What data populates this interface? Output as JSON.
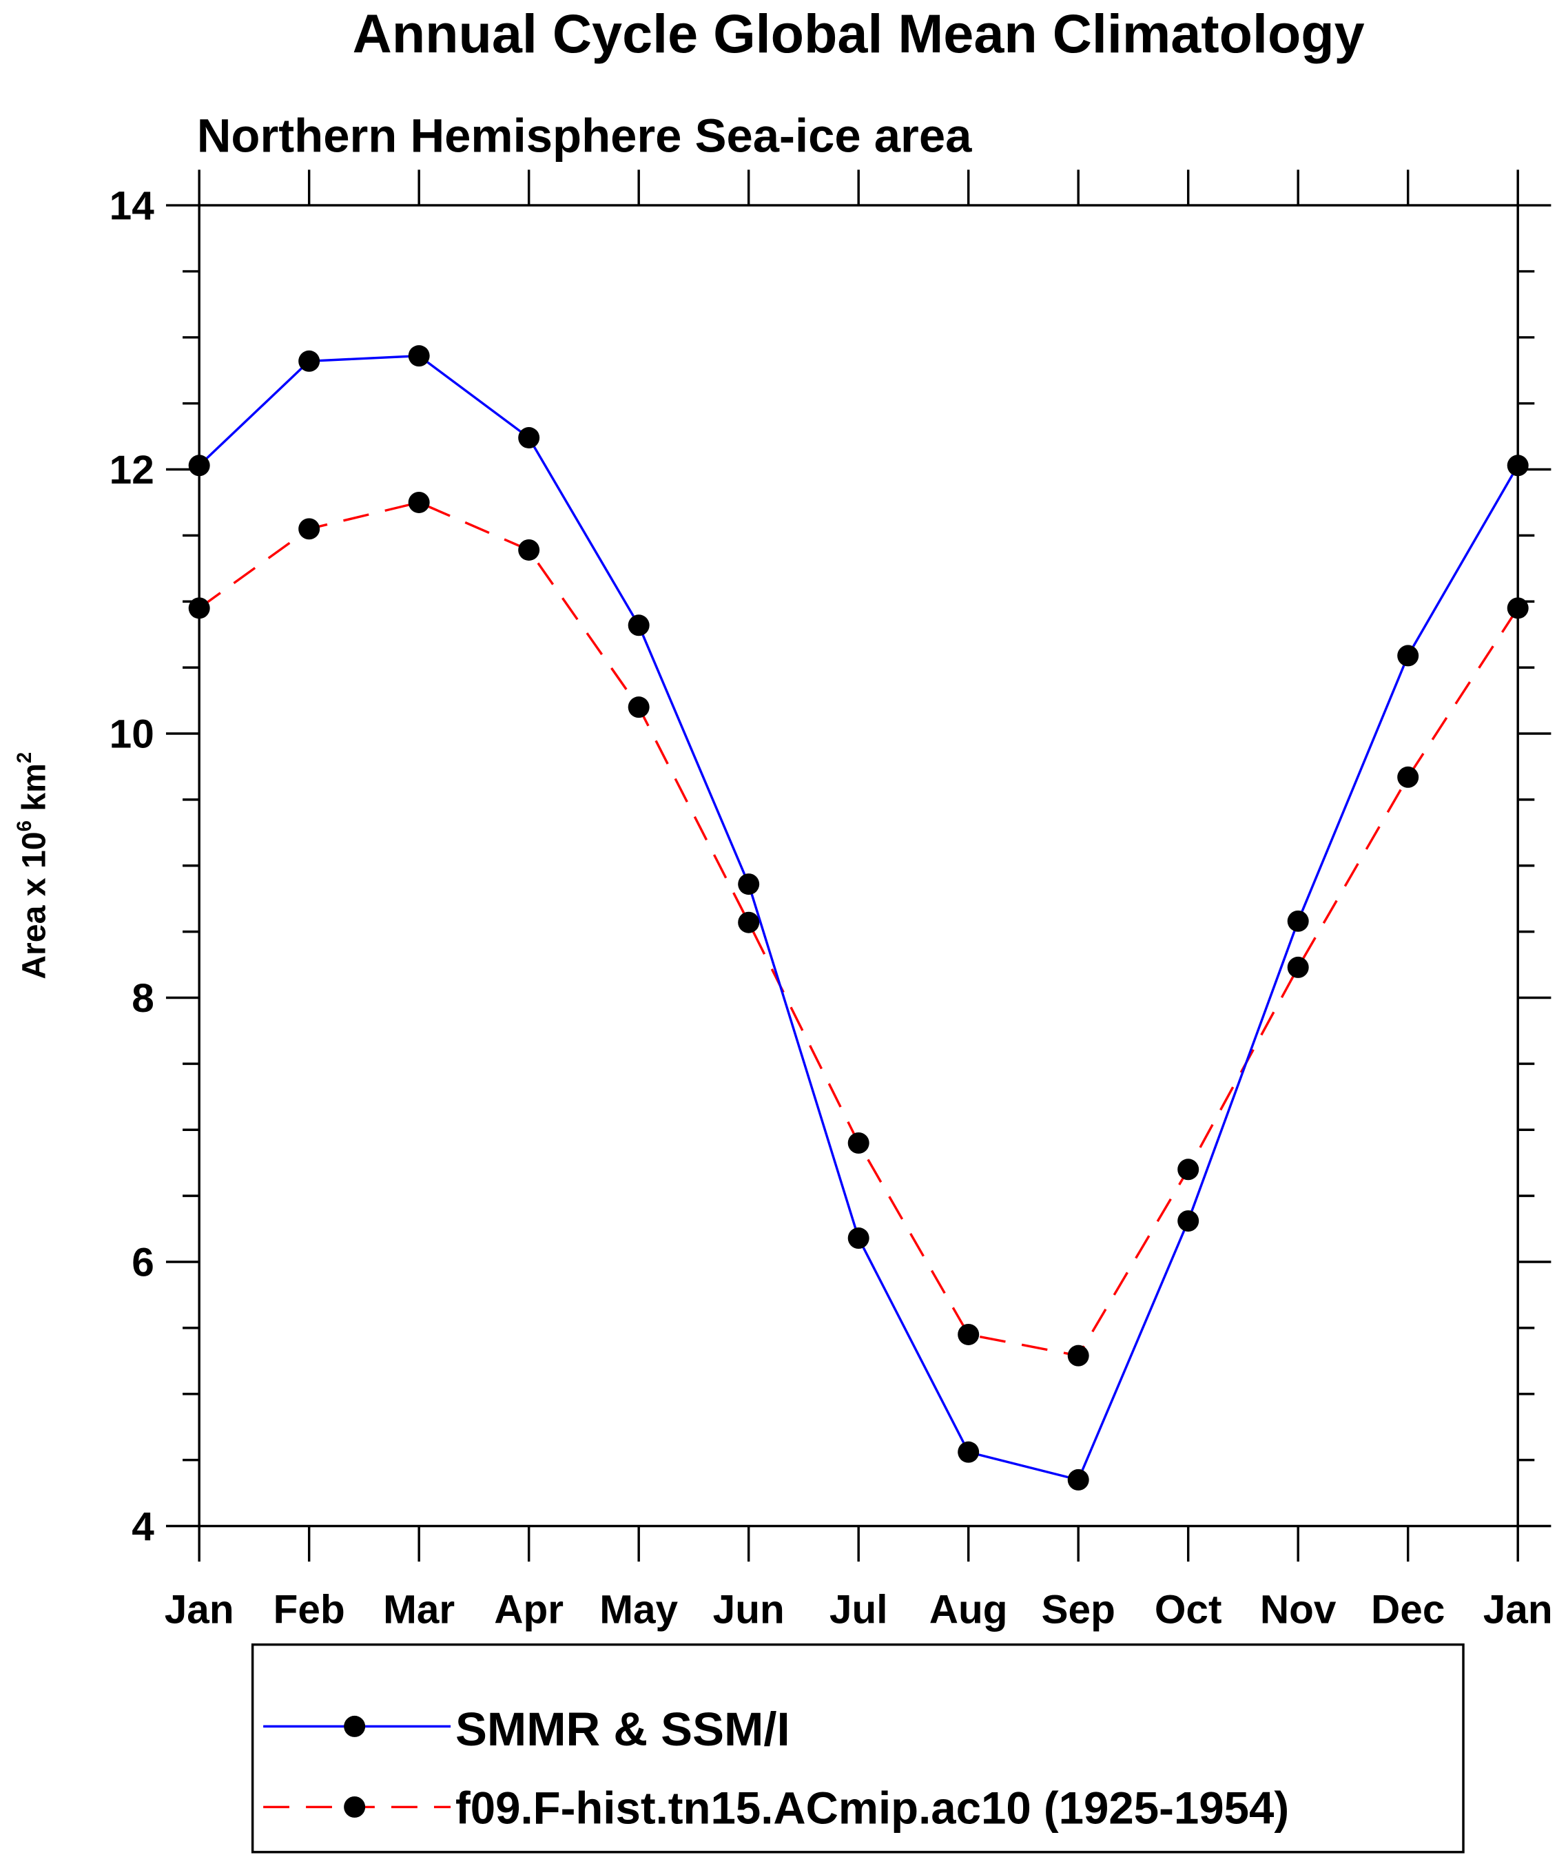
{
  "chart_data": {
    "type": "line",
    "title": "Annual Cycle Global Mean Climatology",
    "subtitle": "Northern Hemisphere Sea-ice area",
    "ylabel": "Area x 10",
    "ylabel_exp": "6",
    "ylabel_unit": " km",
    "ylabel_unit_exp": "2",
    "xlabel": "",
    "ylim": [
      4,
      14
    ],
    "yticks": [
      4,
      6,
      8,
      10,
      12,
      14
    ],
    "yminor_step": 0.5,
    "categories": [
      "Jan",
      "Feb",
      "Mar",
      "Apr",
      "May",
      "Jun",
      "Jul",
      "Aug",
      "Sep",
      "Oct",
      "Nov",
      "Dec",
      "Jan"
    ],
    "series": [
      {
        "name": "SMMR & SSM/I",
        "color": "#0000ff",
        "dash": "solid",
        "values": [
          12.03,
          12.82,
          12.86,
          12.24,
          10.82,
          8.86,
          6.18,
          4.56,
          4.35,
          6.31,
          8.58,
          10.59,
          12.03
        ]
      },
      {
        "name": "f09.F-hist.tn15.ACmip.ac10 (1925-1954)",
        "color": "#ff0000",
        "dash": "dashed",
        "values": [
          10.95,
          11.55,
          11.75,
          11.39,
          10.2,
          8.57,
          6.9,
          5.45,
          5.29,
          6.7,
          8.23,
          9.67,
          10.95
        ]
      }
    ],
    "marker": "filled-circle",
    "marker_color": "#000000",
    "legend_position": "bottom"
  }
}
